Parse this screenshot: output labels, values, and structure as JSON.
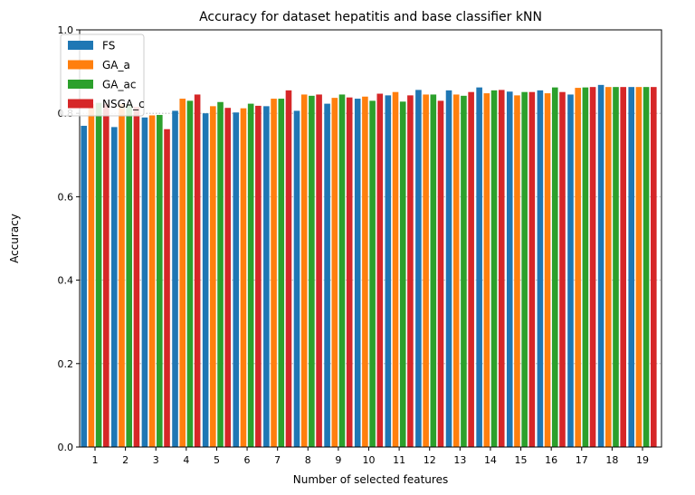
{
  "chart_data": {
    "type": "bar",
    "title": "Accuracy for dataset hepatitis and base classifier kNN",
    "xlabel": "Number of selected features",
    "ylabel": "Accuracy",
    "ylim": [
      0,
      1.0
    ],
    "yticks": [
      "0.0",
      "0.2",
      "0.4",
      "0.6",
      "0.8",
      "1.0"
    ],
    "categories": [
      "1",
      "2",
      "3",
      "4",
      "5",
      "6",
      "7",
      "8",
      "9",
      "10",
      "11",
      "12",
      "13",
      "14",
      "15",
      "16",
      "17",
      "18",
      "19"
    ],
    "grid": "horizontal dotted",
    "legend_position": "top-left",
    "series": [
      {
        "name": "FS",
        "color": "#1f77b4",
        "values": [
          0.77,
          0.767,
          0.79,
          0.806,
          0.8,
          0.802,
          0.817,
          0.806,
          0.823,
          0.835,
          0.843,
          0.856,
          0.855,
          0.862,
          0.852,
          0.855,
          0.845,
          0.868,
          0.863
        ]
      },
      {
        "name": "GA_a",
        "color": "#ff7f0e",
        "values": [
          0.822,
          0.822,
          0.795,
          0.835,
          0.817,
          0.812,
          0.835,
          0.845,
          0.837,
          0.84,
          0.851,
          0.845,
          0.845,
          0.848,
          0.843,
          0.848,
          0.861,
          0.863,
          0.863
        ]
      },
      {
        "name": "GA_ac",
        "color": "#2ca02c",
        "values": [
          0.825,
          0.822,
          0.796,
          0.83,
          0.827,
          0.823,
          0.835,
          0.842,
          0.845,
          0.83,
          0.828,
          0.845,
          0.842,
          0.855,
          0.851,
          0.862,
          0.862,
          0.863,
          0.863
        ]
      },
      {
        "name": "NSGA_c",
        "color": "#d62728",
        "values": [
          0.822,
          0.815,
          0.762,
          0.845,
          0.813,
          0.818,
          0.855,
          0.845,
          0.838,
          0.847,
          0.843,
          0.83,
          0.851,
          0.856,
          0.851,
          0.851,
          0.863,
          0.863,
          0.863
        ]
      }
    ]
  }
}
